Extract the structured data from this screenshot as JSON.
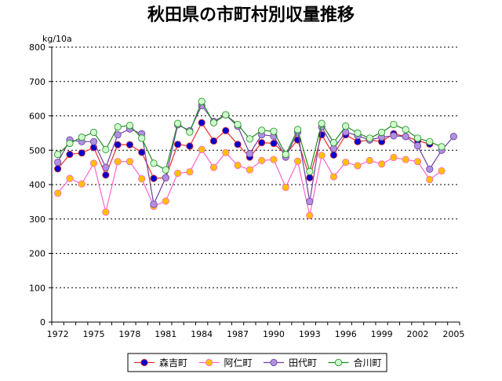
{
  "chart_data": {
    "type": "line",
    "title": "秋田県の市町村別収量推移",
    "ylabel": "kg/10a",
    "xlabel": "",
    "ylim": [
      0,
      800
    ],
    "xlim": [
      1972,
      2005
    ],
    "yticks": [
      0,
      100,
      200,
      300,
      400,
      500,
      600,
      700,
      800
    ],
    "xticks": [
      1972,
      1975,
      1978,
      1981,
      1984,
      1987,
      1990,
      1993,
      1996,
      1999,
      2002,
      2005
    ],
    "grid": "horizontal-dotted",
    "legend_position": "bottom",
    "x": [
      1972,
      1973,
      1974,
      1975,
      1976,
      1977,
      1978,
      1979,
      1980,
      1981,
      1982,
      1983,
      1984,
      1985,
      1986,
      1987,
      1988,
      1989,
      1990,
      1991,
      1992,
      1993,
      1994,
      1995,
      1996,
      1997,
      1998,
      1999,
      2000,
      2001,
      2002,
      2003,
      2004,
      2005
    ],
    "series": [
      {
        "name": "森吉町",
        "color": "#0000cc",
        "line_color": "#e53030",
        "values": [
          446,
          488,
          492,
          508,
          428,
          516,
          516,
          494,
          418,
          420,
          517,
          512,
          580,
          527,
          557,
          517,
          480,
          522,
          520,
          488,
          530,
          420,
          545,
          486,
          545,
          525,
          530,
          525,
          548,
          540,
          528,
          518,
          null,
          null
        ]
      },
      {
        "name": "阿仁町",
        "color": "#ffc000",
        "line_color": "#ff66cc",
        "values": [
          375,
          418,
          402,
          462,
          320,
          467,
          467,
          417,
          337,
          352,
          433,
          437,
          502,
          450,
          493,
          456,
          443,
          470,
          473,
          392,
          468,
          310,
          485,
          423,
          465,
          455,
          470,
          460,
          479,
          473,
          467,
          415,
          440,
          null
        ]
      },
      {
        "name": "田代町",
        "color": "#b090e0",
        "line_color": "#7040a0",
        "values": [
          465,
          530,
          525,
          525,
          450,
          545,
          562,
          548,
          343,
          420,
          574,
          557,
          630,
          584,
          603,
          570,
          490,
          545,
          541,
          480,
          553,
          351,
          568,
          505,
          553,
          542,
          530,
          538,
          542,
          540,
          513,
          445,
          500,
          540
        ]
      },
      {
        "name": "合川町",
        "color": "#ccffcc",
        "line_color": "#228b22",
        "values": [
          488,
          520,
          538,
          552,
          502,
          568,
          572,
          535,
          462,
          443,
          578,
          553,
          642,
          580,
          603,
          575,
          533,
          558,
          555,
          488,
          560,
          438,
          578,
          522,
          570,
          550,
          535,
          552,
          575,
          560,
          535,
          525,
          510,
          null
        ]
      }
    ]
  }
}
